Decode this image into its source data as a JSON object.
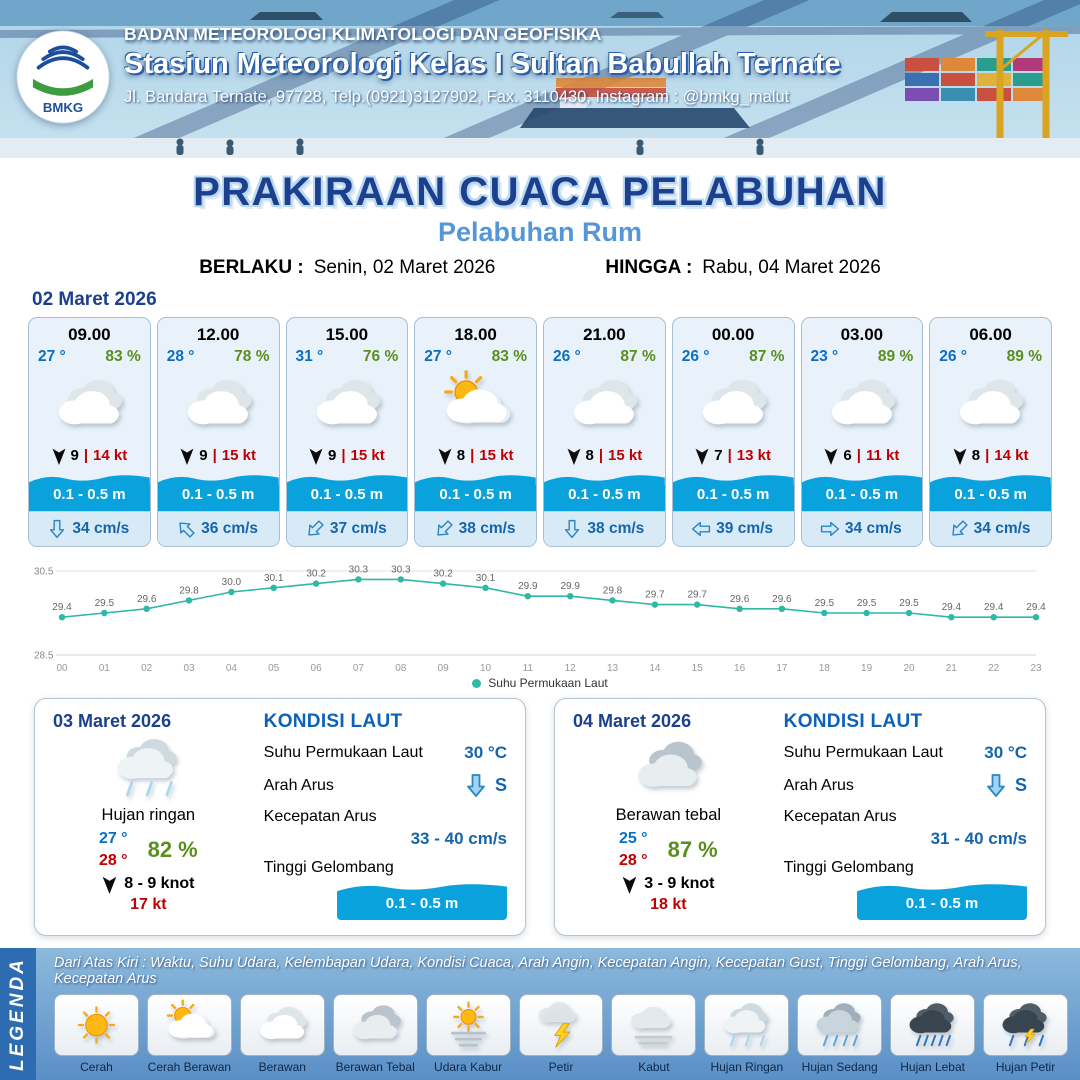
{
  "colors": {
    "navy": "#1c3f8e",
    "accent_blue": "#5596d8",
    "temp_blue": "#0a6fc2",
    "humidity_green": "#5a8f1e",
    "alert_red": "#c00000",
    "wave_blue": "#0aa2dd",
    "chart_teal": "#2eb8a5",
    "legend_band_blue": "#2e6cb2"
  },
  "header": {
    "org": "BADAN METEOROLOGI KLIMATOLOGI DAN GEOFISIKA",
    "station": "Stasiun Meteorologi Kelas I Sultan Babullah Ternate",
    "address": "Jl. Bandara Ternate, 97728, Telp.(0921)3127902, Fax. 3110430, Instagram : @bmkg_malut",
    "logo_text": "BMKG"
  },
  "title": {
    "main": "PRAKIRAAN CUACA PELABUHAN",
    "sub": "Pelabuhan Rum",
    "berlaku_label": "BERLAKU :",
    "berlaku_value": "Senin, 02 Maret 2026",
    "hingga_label": "HINGGA :",
    "hingga_value": "Rabu, 04 Maret 2026"
  },
  "forecast_date": "02 Maret 2026",
  "ui": {
    "wind_sep": "|"
  },
  "hourly": [
    {
      "time": "09.00",
      "temp": "27 °",
      "rh": "83 %",
      "icon": "berawan",
      "wind": "9",
      "gust": "14 kt",
      "wind_rot": 0,
      "wave": "0.1 - 0.5 m",
      "current": "34 cm/s",
      "cur_rot": 0
    },
    {
      "time": "12.00",
      "temp": "28 °",
      "rh": "78 %",
      "icon": "berawan",
      "wind": "9",
      "gust": "15 kt",
      "wind_rot": 0,
      "wave": "0.1 - 0.5 m",
      "current": "36 cm/s",
      "cur_rot": 135
    },
    {
      "time": "15.00",
      "temp": "31 °",
      "rh": "76 %",
      "icon": "berawan",
      "wind": "9",
      "gust": "15 kt",
      "wind_rot": 0,
      "wave": "0.1 - 0.5 m",
      "current": "37 cm/s",
      "cur_rot": 45
    },
    {
      "time": "18.00",
      "temp": "27 °",
      "rh": "83 %",
      "icon": "cerah-berawan",
      "wind": "8",
      "gust": "15 kt",
      "wind_rot": 0,
      "wave": "0.1 - 0.5 m",
      "current": "38 cm/s",
      "cur_rot": 45
    },
    {
      "time": "21.00",
      "temp": "26 °",
      "rh": "87 %",
      "icon": "berawan",
      "wind": "8",
      "gust": "15 kt",
      "wind_rot": 0,
      "wave": "0.1 - 0.5 m",
      "current": "38 cm/s",
      "cur_rot": 0
    },
    {
      "time": "00.00",
      "temp": "26 °",
      "rh": "87 %",
      "icon": "berawan",
      "wind": "7",
      "gust": "13 kt",
      "wind_rot": 0,
      "wave": "0.1 - 0.5 m",
      "current": "39 cm/s",
      "cur_rot": 90
    },
    {
      "time": "03.00",
      "temp": "23 °",
      "rh": "89 %",
      "icon": "berawan",
      "wind": "6",
      "gust": "11 kt",
      "wind_rot": 0,
      "wave": "0.1 - 0.5 m",
      "current": "34 cm/s",
      "cur_rot": -90
    },
    {
      "time": "06.00",
      "temp": "26 °",
      "rh": "89 %",
      "icon": "berawan",
      "wind": "8",
      "gust": "14 kt",
      "wind_rot": 0,
      "wave": "0.1 - 0.5 m",
      "current": "34 cm/s",
      "cur_rot": 45
    }
  ],
  "chart_data": {
    "type": "line",
    "series_name": "Suhu Permukaan Laut",
    "x": [
      "00",
      "01",
      "02",
      "03",
      "04",
      "05",
      "06",
      "07",
      "08",
      "09",
      "10",
      "11",
      "12",
      "13",
      "14",
      "15",
      "16",
      "17",
      "18",
      "19",
      "20",
      "21",
      "22",
      "23"
    ],
    "values": [
      29.4,
      29.5,
      29.6,
      29.8,
      30.0,
      30.1,
      30.2,
      30.3,
      30.3,
      30.2,
      30.1,
      29.9,
      29.9,
      29.8,
      29.7,
      29.7,
      29.6,
      29.6,
      29.5,
      29.5,
      29.5,
      29.4,
      29.4,
      29.4
    ],
    "ylim": [
      28.5,
      30.5
    ],
    "line_color": "#2eb8a5",
    "grid": true,
    "legend_position": "bottom"
  },
  "daily": [
    {
      "date": "03 Maret 2026",
      "icon": "hujan-ringan",
      "condition": "Hujan ringan",
      "temp_min": "27 °",
      "temp_max": "28 °",
      "rh": "82 %",
      "wind": "8 - 9 knot",
      "gust": "17 kt",
      "wind_rot": 0,
      "sea": {
        "title": "KONDISI LAUT",
        "sst_label": "Suhu Permukaan Laut",
        "sst": "30 °C",
        "arah_label": "Arah Arus",
        "arah": "S",
        "arah_rot": 0,
        "kec_label": "Kecepatan Arus",
        "kec": "33 - 40 cm/s",
        "gel_label": "Tinggi Gelombang",
        "gel": "0.1 - 0.5 m"
      }
    },
    {
      "date": "04 Maret 2026",
      "icon": "berawan-tebal",
      "condition": "Berawan tebal",
      "temp_min": "25 °",
      "temp_max": "28 °",
      "rh": "87 %",
      "wind": "3 - 9 knot",
      "gust": "18 kt",
      "wind_rot": 0,
      "sea": {
        "title": "KONDISI LAUT",
        "sst_label": "Suhu Permukaan Laut",
        "sst": "30 °C",
        "arah_label": "Arah Arus",
        "arah": "S",
        "arah_rot": 0,
        "kec_label": "Kecepatan Arus",
        "kec": "31 - 40 cm/s",
        "gel_label": "Tinggi Gelombang",
        "gel": "0.1 - 0.5 m"
      }
    }
  ],
  "legend": {
    "title": "LEGENDA",
    "description": "Dari Atas Kiri : Waktu, Suhu Udara, Kelembapan Udara, Kondisi Cuaca, Arah Angin, Kecepatan Angin, Kecepatan Gust, Tinggi Gelombang, Arah Arus, Kecepatan Arus",
    "items": [
      {
        "label": "Cerah",
        "icon": "cerah"
      },
      {
        "label": "Cerah Berawan",
        "icon": "cerah-berawan"
      },
      {
        "label": "Berawan",
        "icon": "berawan"
      },
      {
        "label": "Berawan Tebal",
        "icon": "berawan-tebal"
      },
      {
        "label": "Udara Kabur",
        "icon": "udara-kabur"
      },
      {
        "label": "Petir",
        "icon": "petir"
      },
      {
        "label": "Kabut",
        "icon": "kabut"
      },
      {
        "label": "Hujan Ringan",
        "icon": "hujan-ringan"
      },
      {
        "label": "Hujan Sedang",
        "icon": "hujan-sedang"
      },
      {
        "label": "Hujan Lebat",
        "icon": "hujan-lebat"
      },
      {
        "label": "Hujan Petir",
        "icon": "hujan-petir"
      }
    ]
  }
}
